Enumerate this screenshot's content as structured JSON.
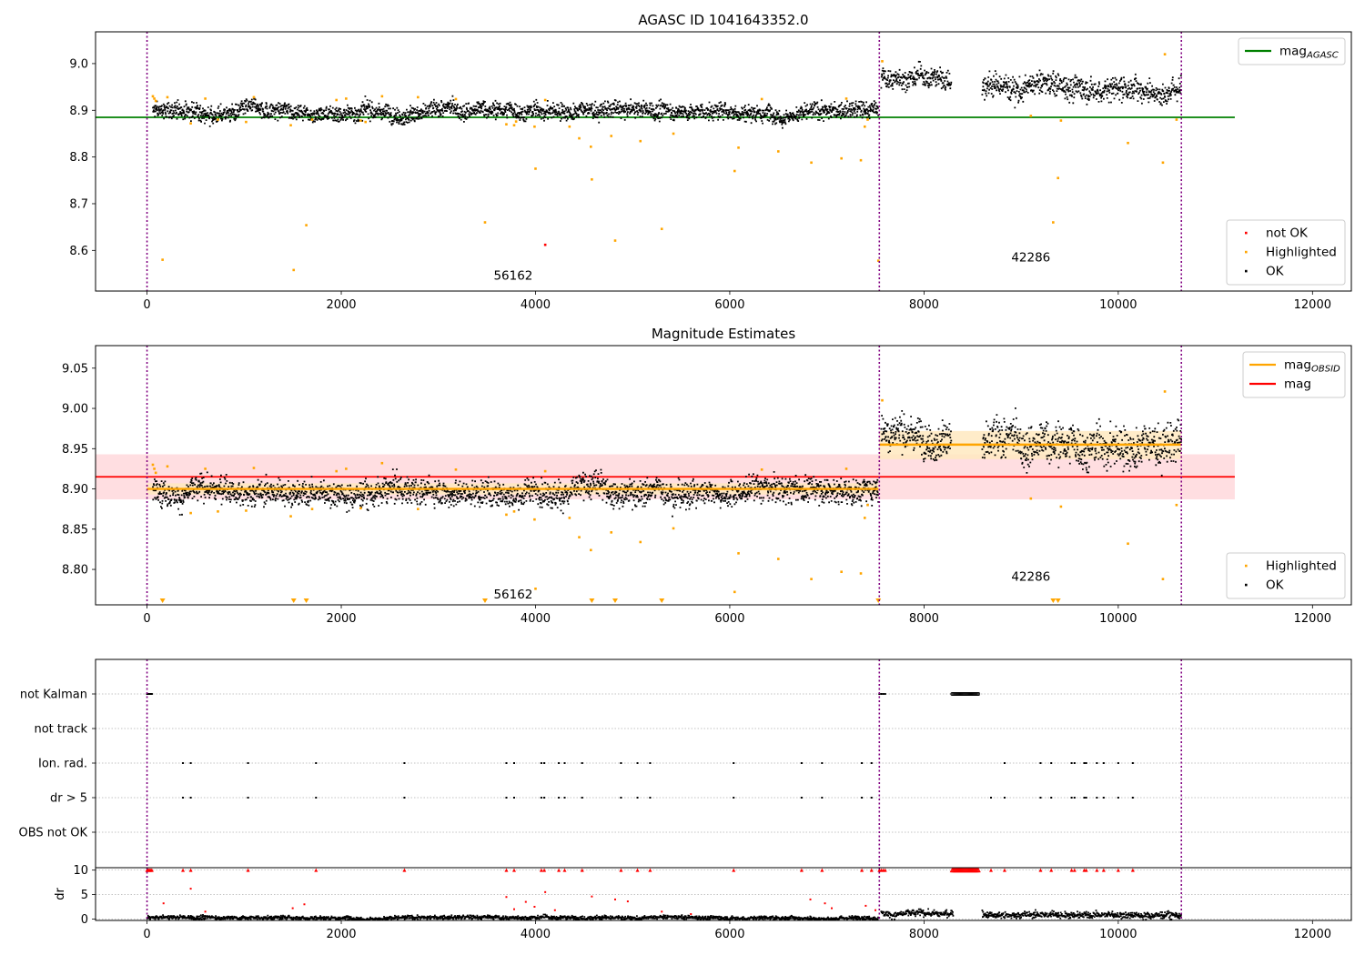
{
  "colors": {
    "ok": "#000000",
    "highlighted": "#ffa500",
    "not_ok": "#ff0000",
    "mag_agasc": "#008000",
    "mag_obsid": "#ffa500",
    "mag": "#ff0000",
    "mag_band": "#ffd6da",
    "obsid_band": "#ffe9bf",
    "obs_divider": "#800080",
    "grid": "#b0b0b0"
  },
  "chart_data": [
    {
      "id": "agasc",
      "type": "scatter",
      "title": "AGASC ID 1041643352.0",
      "xlim": [
        -530,
        12400
      ],
      "ylim": [
        8.513,
        9.068
      ],
      "xticks": [
        0,
        2000,
        4000,
        6000,
        8000,
        10000,
        12000
      ],
      "xtick_labels": [
        "0",
        "2000",
        "4000",
        "6000",
        "8000",
        "10000",
        "12000"
      ],
      "yticks": [
        8.6,
        8.7,
        8.8,
        8.9,
        9.0
      ],
      "ytick_labels": [
        "8.6",
        "8.7",
        "8.8",
        "8.9",
        "9.0"
      ],
      "obs_dividers": [
        0,
        7540,
        10650
      ],
      "annotations": [
        {
          "text": "56162",
          "x": 3770,
          "y": 8.537
        },
        {
          "text": "42286",
          "x": 9100,
          "y": 8.576
        }
      ],
      "hlines": [
        {
          "name": "mag_AGASC",
          "y": 8.885,
          "x0": -530,
          "x1": 11200,
          "color": "#008000"
        }
      ],
      "legends": [
        {
          "position": "top-right",
          "entries": [
            {
              "label": "mag",
              "sub": "AGASC",
              "marker": "line",
              "color": "#008000"
            }
          ]
        },
        {
          "position": "bottom-right",
          "entries": [
            {
              "label": "not OK",
              "marker": "dot",
              "color": "#ff0000"
            },
            {
              "label": "Highlighted",
              "marker": "dot",
              "color": "#ffa500"
            },
            {
              "label": "OK",
              "marker": "dot",
              "color": "#000000"
            }
          ]
        }
      ],
      "segments": [
        {
          "series": "OK",
          "x0": 60,
          "x1": 7530,
          "mean": 8.9,
          "noise": 0.009
        },
        {
          "series": "OK",
          "x0": 7560,
          "x1": 8280,
          "mean": 8.972,
          "noise": 0.011
        },
        {
          "series": "OK",
          "x0": 8600,
          "x1": 10650,
          "mean": 8.953,
          "noise": 0.013
        }
      ],
      "highlighted": [
        [
          60,
          8.93
        ],
        [
          75,
          8.925
        ],
        [
          90,
          8.92
        ],
        [
          160,
          8.58
        ],
        [
          210,
          8.928
        ],
        [
          450,
          8.872
        ],
        [
          600,
          8.925
        ],
        [
          730,
          8.88
        ],
        [
          1020,
          8.875
        ],
        [
          1100,
          8.928
        ],
        [
          1480,
          8.868
        ],
        [
          1510,
          8.558
        ],
        [
          1640,
          8.654
        ],
        [
          1700,
          8.88
        ],
        [
          1950,
          8.922
        ],
        [
          2050,
          8.925
        ],
        [
          2200,
          8.878
        ],
        [
          2250,
          8.875
        ],
        [
          2420,
          8.93
        ],
        [
          2790,
          8.928
        ],
        [
          3180,
          8.924
        ],
        [
          3480,
          8.66
        ],
        [
          3700,
          8.87
        ],
        [
          3780,
          8.868
        ],
        [
          3800,
          8.876
        ],
        [
          3990,
          8.865
        ],
        [
          4000,
          8.775
        ],
        [
          4100,
          8.922
        ],
        [
          4350,
          8.865
        ],
        [
          4450,
          8.84
        ],
        [
          4570,
          8.822
        ],
        [
          4580,
          8.752
        ],
        [
          4780,
          8.845
        ],
        [
          4820,
          8.621
        ],
        [
          5080,
          8.834
        ],
        [
          5300,
          8.646
        ],
        [
          5420,
          8.85
        ],
        [
          6050,
          8.77
        ],
        [
          6090,
          8.82
        ],
        [
          6330,
          8.924
        ],
        [
          6500,
          8.812
        ],
        [
          6840,
          8.788
        ],
        [
          7150,
          8.797
        ],
        [
          7200,
          8.925
        ],
        [
          7350,
          8.793
        ],
        [
          7390,
          8.865
        ],
        [
          7420,
          8.88
        ],
        [
          7530,
          8.578
        ],
        [
          7570,
          9.005
        ],
        [
          9100,
          8.888
        ],
        [
          9330,
          8.66
        ],
        [
          9380,
          8.755
        ],
        [
          9410,
          8.878
        ],
        [
          10100,
          8.83
        ],
        [
          10460,
          8.788
        ],
        [
          10480,
          9.02
        ],
        [
          10600,
          8.88
        ]
      ],
      "not_ok": [
        [
          4100,
          8.612
        ]
      ]
    },
    {
      "id": "magest",
      "type": "scatter",
      "title": "Magnitude Estimates",
      "xlim": [
        -530,
        12400
      ],
      "ylim": [
        8.756,
        9.078
      ],
      "xticks": [
        0,
        2000,
        4000,
        6000,
        8000,
        10000,
        12000
      ],
      "xtick_labels": [
        "0",
        "2000",
        "4000",
        "6000",
        "8000",
        "10000",
        "12000"
      ],
      "yticks": [
        8.8,
        8.85,
        8.9,
        8.95,
        9.0,
        9.05
      ],
      "ytick_labels": [
        "8.80",
        "8.85",
        "8.90",
        "8.95",
        "9.00",
        "9.05"
      ],
      "obs_dividers": [
        0,
        7540,
        10650
      ],
      "annotations": [
        {
          "text": "56162",
          "x": 3770,
          "y": 8.764
        },
        {
          "text": "42286",
          "x": 9100,
          "y": 8.786
        }
      ],
      "mag_band": {
        "y0": 8.887,
        "y1": 8.943,
        "x0": -530,
        "x1": 11200
      },
      "mag_line": {
        "y": 8.915,
        "x0": -530,
        "x1": 11200
      },
      "obsid_bands": [
        {
          "x0": 0,
          "x1": 7530,
          "y0": 8.893,
          "y1": 8.907,
          "mean": 8.9
        },
        {
          "x0": 7540,
          "x1": 10650,
          "y0": 8.937,
          "y1": 8.972,
          "mean": 8.955
        }
      ],
      "legends": [
        {
          "position": "top-right",
          "entries": [
            {
              "label": "mag",
              "sub": "OBSID",
              "marker": "line",
              "color": "#ffa500"
            },
            {
              "label": "mag",
              "marker": "line",
              "color": "#ff0000"
            }
          ]
        },
        {
          "position": "bottom-right",
          "entries": [
            {
              "label": "Highlighted",
              "marker": "dot",
              "color": "#ffa500"
            },
            {
              "label": "OK",
              "marker": "dot",
              "color": "#000000"
            }
          ]
        }
      ],
      "segments": [
        {
          "series": "OK",
          "x0": 60,
          "x1": 7530,
          "mean": 8.9,
          "noise": 0.008
        },
        {
          "series": "OK",
          "x0": 7560,
          "x1": 8280,
          "mean": 8.972,
          "noise": 0.011
        },
        {
          "series": "OK",
          "x0": 8600,
          "x1": 10650,
          "mean": 8.953,
          "noise": 0.013
        }
      ],
      "highlighted": [
        [
          60,
          8.93
        ],
        [
          75,
          8.925
        ],
        [
          90,
          8.92
        ],
        [
          210,
          8.928
        ],
        [
          450,
          8.87
        ],
        [
          600,
          8.925
        ],
        [
          730,
          8.872
        ],
        [
          1020,
          8.873
        ],
        [
          1100,
          8.926
        ],
        [
          1480,
          8.866
        ],
        [
          1700,
          8.875
        ],
        [
          1950,
          8.922
        ],
        [
          2050,
          8.925
        ],
        [
          2200,
          8.876
        ],
        [
          2420,
          8.932
        ],
        [
          2790,
          8.875
        ],
        [
          3180,
          8.924
        ],
        [
          3700,
          8.868
        ],
        [
          3780,
          8.872
        ],
        [
          3990,
          8.862
        ],
        [
          4000,
          8.776
        ],
        [
          4100,
          8.922
        ],
        [
          4350,
          8.864
        ],
        [
          4450,
          8.84
        ],
        [
          4570,
          8.824
        ],
        [
          4780,
          8.846
        ],
        [
          5080,
          8.834
        ],
        [
          5420,
          8.851
        ],
        [
          6050,
          8.772
        ],
        [
          6090,
          8.82
        ],
        [
          6330,
          8.924
        ],
        [
          6500,
          8.813
        ],
        [
          6840,
          8.788
        ],
        [
          7150,
          8.797
        ],
        [
          7200,
          8.925
        ],
        [
          7350,
          8.795
        ],
        [
          7390,
          8.864
        ],
        [
          7420,
          8.88
        ],
        [
          7570,
          9.01
        ],
        [
          9100,
          8.888
        ],
        [
          9410,
          8.878
        ],
        [
          10100,
          8.832
        ],
        [
          10460,
          8.788
        ],
        [
          10480,
          9.021
        ],
        [
          10600,
          8.88
        ]
      ],
      "offscale_triangles": [
        160,
        1510,
        1640,
        3480,
        4580,
        4820,
        5300,
        7530,
        9330,
        9380
      ]
    },
    {
      "id": "flags",
      "type": "scatter",
      "xlim": [
        -530,
        12400
      ],
      "categories": [
        "not Kalman",
        "not track",
        "Ion. rad.",
        "dr > 5",
        "OBS not OK"
      ],
      "obs_dividers": [
        0,
        7540,
        10650
      ],
      "events": {
        "not Kalman": [
          0,
          10,
          20,
          30,
          40,
          50,
          7540,
          7560,
          7580,
          7600
        ],
        "not track": [],
        "Ion. rad.": [
          370,
          450,
          1040,
          1740,
          2650,
          3700,
          3780,
          4060,
          4090,
          4240,
          4300,
          4480,
          4880,
          5050,
          5180,
          6040,
          6740,
          6950,
          7360,
          7460,
          8830,
          9200,
          9310,
          9520,
          9550,
          9650,
          9670,
          9780,
          9850,
          10000,
          10150
        ],
        "dr > 5": [
          370,
          450,
          1040,
          1740,
          2650,
          3700,
          3780,
          4060,
          4090,
          4240,
          4300,
          4480,
          4880,
          5050,
          5180,
          6040,
          6740,
          6950,
          7360,
          7460,
          8690,
          8830,
          9200,
          9310,
          9520,
          9550,
          9650,
          9670,
          9780,
          9850,
          10000,
          10150
        ],
        "OBS not OK": []
      },
      "not_kalman_ring_range": [
        8290,
        8560
      ]
    },
    {
      "id": "dr",
      "type": "scatter",
      "ylabel": "dr",
      "xlim": [
        -530,
        12400
      ],
      "ylim": [
        -0.3,
        10.5
      ],
      "xticks": [
        0,
        2000,
        4000,
        6000,
        8000,
        10000,
        12000
      ],
      "xtick_labels": [
        "0",
        "2000",
        "4000",
        "6000",
        "8000",
        "10000",
        "12000"
      ],
      "yticks": [
        0,
        5,
        10
      ],
      "ytick_labels": [
        "0",
        "5",
        "10"
      ],
      "obs_dividers": [
        0,
        7540,
        10650
      ],
      "segments": [
        {
          "series": "OK",
          "x0": 0,
          "x1": 7530,
          "mean": 0.45,
          "noise": 0.2
        },
        {
          "series": "OK",
          "x0": 7560,
          "x1": 8300,
          "mean": 1.2,
          "noise": 0.35
        },
        {
          "series": "OK",
          "x0": 8600,
          "x1": 10650,
          "mean": 1.2,
          "noise": 0.35
        }
      ],
      "red_at_10": [
        0,
        10,
        20,
        30,
        40,
        50,
        370,
        450,
        1040,
        1740,
        2650,
        3700,
        3780,
        4060,
        4090,
        4240,
        4300,
        4480,
        4880,
        5050,
        5180,
        6040,
        6740,
        6950,
        7360,
        7460,
        7540,
        7560,
        7580,
        7600,
        8690,
        8830,
        9200,
        9310,
        9520,
        9550,
        9650,
        9670,
        9780,
        9850,
        10000,
        10150
      ],
      "red_scattered": [
        [
          170,
          3.2
        ],
        [
          450,
          6.2
        ],
        [
          600,
          1.5
        ],
        [
          1500,
          2.2
        ],
        [
          1620,
          3.0
        ],
        [
          3700,
          4.5
        ],
        [
          3780,
          2.0
        ],
        [
          3900,
          3.5
        ],
        [
          3990,
          2.5
        ],
        [
          4100,
          5.5
        ],
        [
          4200,
          1.8
        ],
        [
          4580,
          4.6
        ],
        [
          4820,
          4.0
        ],
        [
          4950,
          3.6
        ],
        [
          5300,
          1.5
        ],
        [
          5600,
          1.0
        ],
        [
          6830,
          4.0
        ],
        [
          6980,
          3.2
        ],
        [
          7050,
          2.2
        ],
        [
          7400,
          2.7
        ],
        [
          7500,
          1.8
        ]
      ],
      "not_kalman_ring_range": [
        8290,
        8560
      ]
    }
  ]
}
